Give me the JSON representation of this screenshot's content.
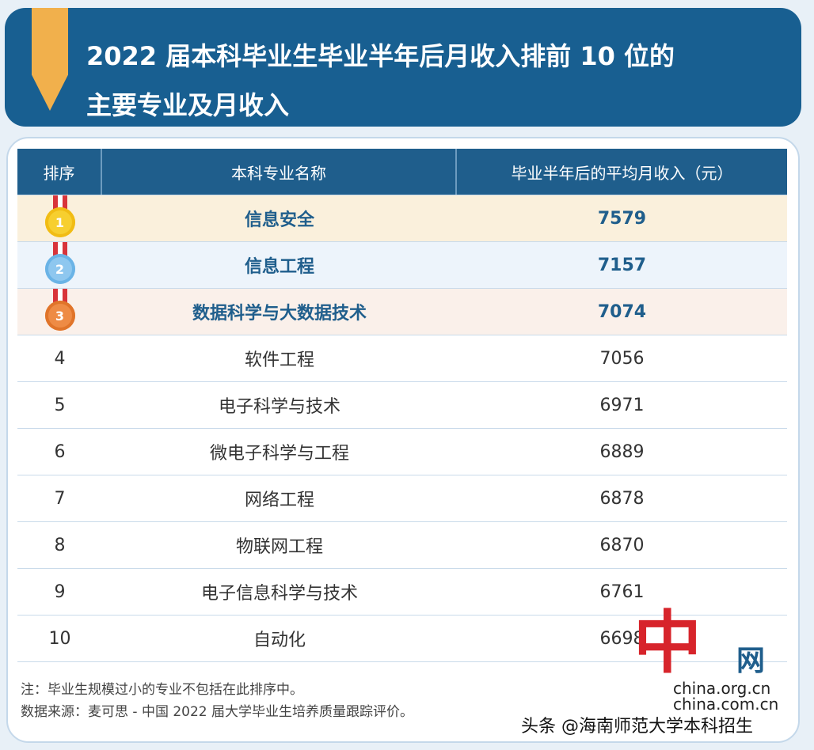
{
  "header": {
    "title_line1": "2022 届本科毕业生毕业半年后月收入排前 10 位的",
    "title_line2": "主要专业及月收入"
  },
  "table": {
    "columns": [
      "排序",
      "本科专业名称",
      "毕业半年后的平均月收入（元）"
    ],
    "rows": [
      {
        "rank": "1",
        "name": "信息安全",
        "income": "7579"
      },
      {
        "rank": "2",
        "name": "信息工程",
        "income": "7157"
      },
      {
        "rank": "3",
        "name": "数据科学与大数据技术",
        "income": "7074"
      },
      {
        "rank": "4",
        "name": "软件工程",
        "income": "7056"
      },
      {
        "rank": "5",
        "name": "电子科学与技术",
        "income": "6971"
      },
      {
        "rank": "6",
        "name": "微电子科学与工程",
        "income": "6889"
      },
      {
        "rank": "7",
        "name": "网络工程",
        "income": "6878"
      },
      {
        "rank": "8",
        "name": "物联网工程",
        "income": "6870"
      },
      {
        "rank": "9",
        "name": "电子信息科学与技术",
        "income": "6761"
      },
      {
        "rank": "10",
        "name": "自动化",
        "income": "6698"
      }
    ]
  },
  "notes": {
    "note": "注：毕业生规模过小的专业不包括在此排序中。",
    "source": "数据来源：麦可思 - 中国 2022 届大学毕业生培养质量跟踪评价。"
  },
  "logo": {
    "mark": "中",
    "net": "网",
    "domain1": "china.org.cn",
    "domain2": "china.com.cn"
  },
  "watermark": "头条 @海南师范大学本科招生",
  "colors": {
    "header_bg": "#185f91",
    "table_head": "#1f5e8c",
    "ribbon": "#f1b04c"
  }
}
